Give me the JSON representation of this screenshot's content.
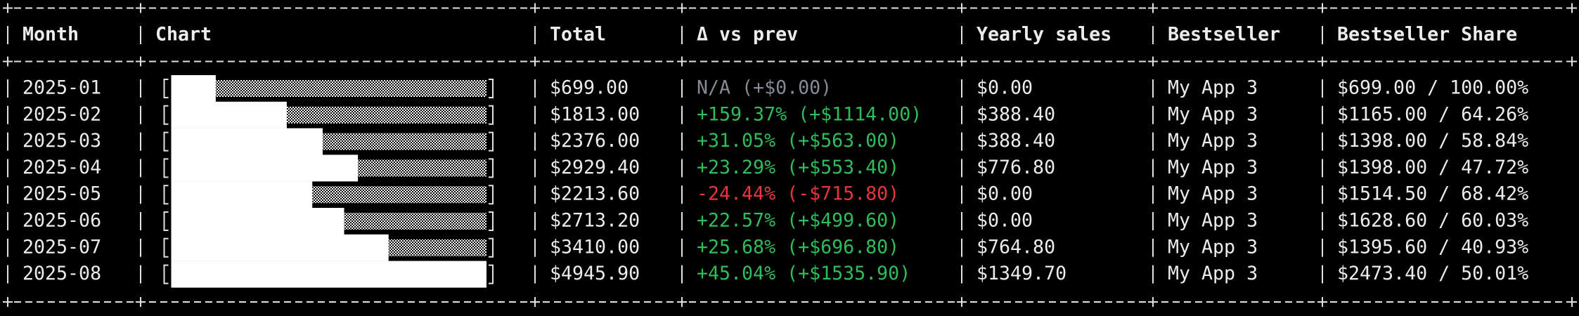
{
  "header": [
    "Month",
    "Chart",
    "Total",
    "Δ vs prev",
    "Yearly sales",
    "Bestseller",
    "Bestseller Share"
  ],
  "rows": [
    {
      "month": "2025-01",
      "total": "$699.00",
      "delta": {
        "text": "N/A (+$0.00)",
        "color": "#858a94"
      },
      "yearly": "$0.00",
      "bestseller": "My App 3",
      "share": "$699.00 / 100.00%"
    },
    {
      "month": "2025-02",
      "total": "$1813.00",
      "delta": {
        "text": "+159.37% (+$1114.00)",
        "color": "#2fbd5c"
      },
      "yearly": "$388.40",
      "bestseller": "My App 3",
      "share": "$1165.00 / 64.26%"
    },
    {
      "month": "2025-03",
      "total": "$2376.00",
      "delta": {
        "text": "+31.05% (+$563.00)",
        "color": "#2fbd5c"
      },
      "yearly": "$388.40",
      "bestseller": "My App 3",
      "share": "$1398.00 / 58.84%"
    },
    {
      "month": "2025-04",
      "total": "$2929.40",
      "delta": {
        "text": "+23.29% (+$553.40)",
        "color": "#2fbd5c"
      },
      "yearly": "$776.80",
      "bestseller": "My App 3",
      "share": "$1398.00 / 47.72%"
    },
    {
      "month": "2025-05",
      "total": "$2213.60",
      "delta": {
        "text": "-24.44% (-$715.80)",
        "color": "#e8363d"
      },
      "yearly": "$0.00",
      "bestseller": "My App 3",
      "share": "$1514.50 / 68.42%"
    },
    {
      "month": "2025-06",
      "total": "$2713.20",
      "delta": {
        "text": "+22.57% (+$499.60)",
        "color": "#2fbd5c"
      },
      "yearly": "$0.00",
      "bestseller": "My App 3",
      "share": "$1628.60 / 60.03%"
    },
    {
      "month": "2025-07",
      "total": "$3410.00",
      "delta": {
        "text": "+25.68% (+$696.80)",
        "color": "#2fbd5c"
      },
      "yearly": "$764.80",
      "bestseller": "My App 3",
      "share": "$1395.60 / 40.93%"
    },
    {
      "month": "2025-08",
      "total": "$4945.90",
      "delta": {
        "text": "+45.04% (+$1535.90)",
        "color": "#2fbd5c"
      },
      "yearly": "$1349.70",
      "bestseller": "My App 3",
      "share": "$2473.40 / 50.01%"
    }
  ]
}
